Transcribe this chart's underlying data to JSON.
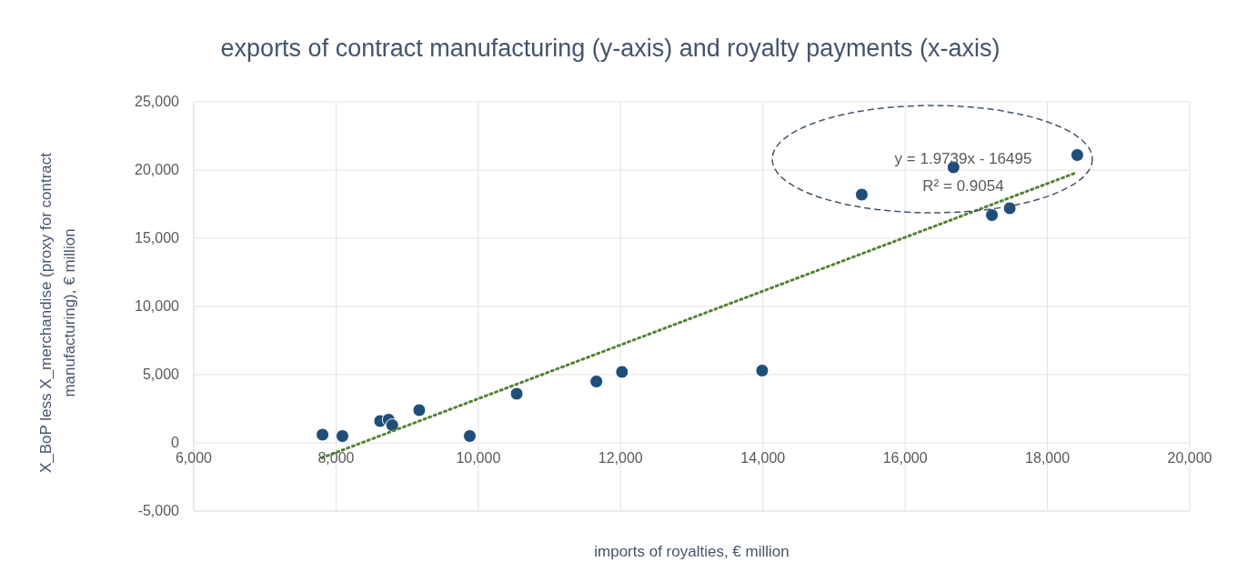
{
  "chart_data": {
    "type": "scatter",
    "title": "exports of contract manufacturing (y-axis) and royalty payments (x-axis)",
    "xlabel": "imports of royalties, € million",
    "ylabel": "X_BoP less X_merchandise (proxy for contract manufacturing), € million",
    "x": [
      7810,
      8090,
      8620,
      8740,
      8790,
      9170,
      9880,
      10540,
      11660,
      12020,
      13990,
      15390,
      16680,
      17220,
      17470,
      18420
    ],
    "series": [
      {
        "color": "#1f4e79",
        "values": [
          600,
          500,
          1600,
          1700,
          1300,
          2400,
          500,
          3600,
          4500,
          5200,
          5300,
          18200,
          20200,
          16700,
          17200,
          21100
        ]
      },
      {
        "type": "line",
        "color": "#548235",
        "line_style": "dotted",
        "marker": "none",
        "x": [
          7800,
          18400
        ],
        "values": [
          -1100,
          19800
        ]
      }
    ],
    "marker": "circle",
    "grid": true,
    "xlim": [
      6000,
      20000
    ],
    "xticks": [
      {
        "value": 6000,
        "label": "6,000"
      },
      {
        "value": 8000,
        "label": "8,000"
      },
      {
        "value": 10000,
        "label": "10,000"
      },
      {
        "value": 12000,
        "label": "12,000"
      },
      {
        "value": 14000,
        "label": "14,000"
      },
      {
        "value": 16000,
        "label": "16,000"
      },
      {
        "value": 18000,
        "label": "18,000"
      },
      {
        "value": 20000,
        "label": "20,000"
      }
    ],
    "ylim": [
      -5000,
      25000
    ],
    "yticks": [
      {
        "value": -5000,
        "label": "-5,000"
      },
      0,
      {
        "value": 5000,
        "label": "5,000"
      },
      {
        "value": 10000,
        "label": "10,000"
      },
      {
        "value": 15000,
        "label": "15,000"
      },
      {
        "value": 20000,
        "label": "20,000"
      },
      {
        "value": 25000,
        "label": "25,000"
      }
    ],
    "annotations": [
      "y = 1.9739x - 16495",
      "R² = 0.9054"
    ]
  }
}
